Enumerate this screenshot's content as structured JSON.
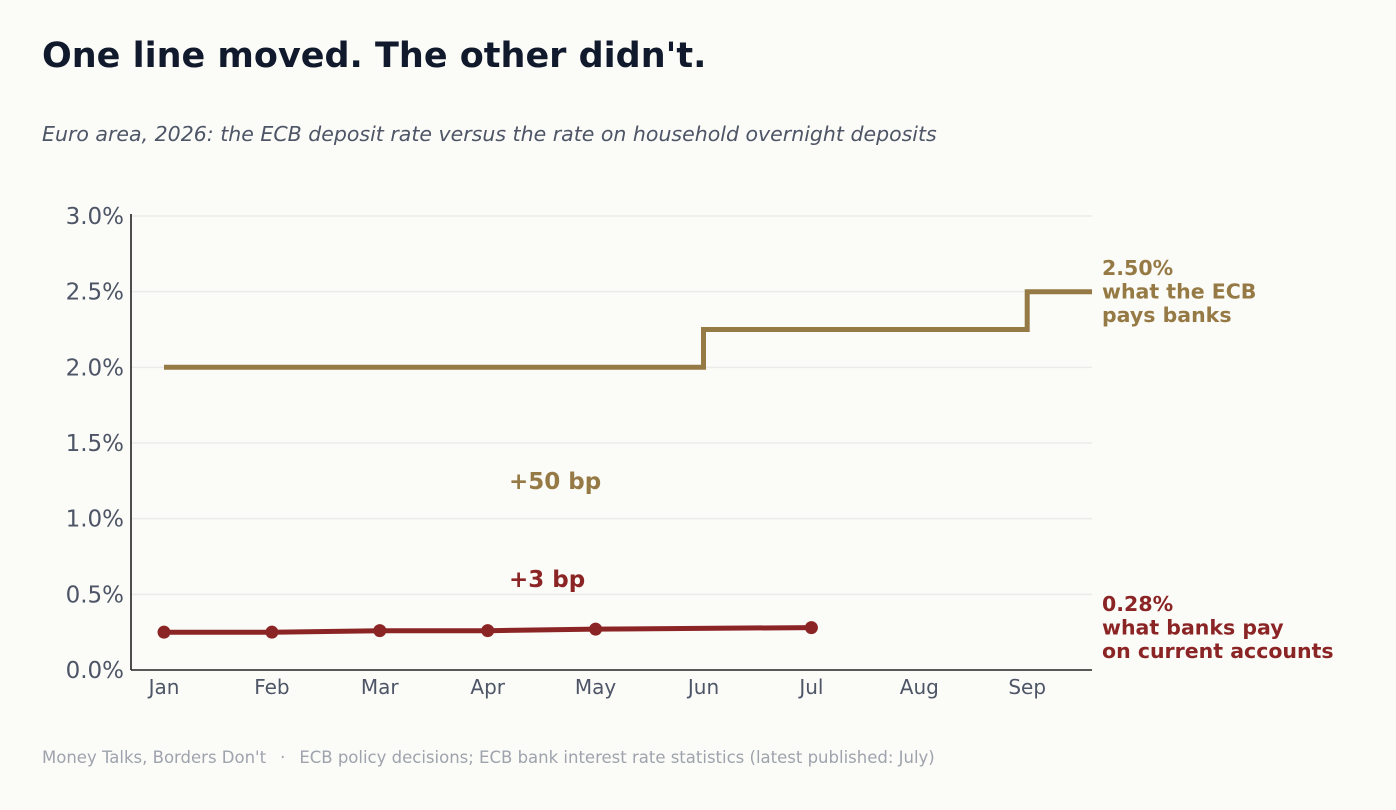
{
  "title": "One line moved. The other didn't.",
  "subtitle": "Euro area, 2026: the ECB deposit rate versus the rate on household overnight deposits",
  "footer": {
    "source_name": "Money Talks, Borders Don't",
    "separator": "·",
    "source_detail": "ECB policy decisions; ECB bank interest rate statistics (latest published: July)"
  },
  "colors": {
    "ecb": "#967a45",
    "household": "#8b2525",
    "axis": "#222222",
    "grid": "#ebebeb",
    "tick_text": "#4d5566"
  },
  "chart_data": {
    "type": "line",
    "x_categories": [
      "Jan",
      "Feb",
      "Mar",
      "Apr",
      "May",
      "Jun",
      "Jul",
      "Aug",
      "Sep"
    ],
    "y_ticks": [
      0.0,
      0.5,
      1.0,
      1.5,
      2.0,
      2.5,
      3.0
    ],
    "y_tick_labels": [
      "0.0%",
      "0.5%",
      "1.0%",
      "1.5%",
      "2.0%",
      "2.5%",
      "3.0%"
    ],
    "ylim": [
      0,
      3.0
    ],
    "grid": "horizontal",
    "series": [
      {
        "key": "ecb",
        "type": "step",
        "points": [
          {
            "x": "Jan",
            "y": 2.0
          },
          {
            "x": "Jun",
            "y": 2.0
          },
          {
            "x": "Jun",
            "y": 2.25
          },
          {
            "x": "Sep",
            "y": 2.25
          },
          {
            "x": "Sep",
            "y": 2.5
          },
          {
            "x": "end",
            "y": 2.5
          }
        ],
        "end_label": [
          "2.50%",
          "what the ECB",
          "pays banks"
        ],
        "change_annotation": "+50 bp"
      },
      {
        "key": "household",
        "type": "line",
        "markers": true,
        "points": [
          {
            "x": "Jan",
            "y": 0.25
          },
          {
            "x": "Feb",
            "y": 0.25
          },
          {
            "x": "Mar",
            "y": 0.26
          },
          {
            "x": "Apr",
            "y": 0.26
          },
          {
            "x": "May",
            "y": 0.27
          },
          {
            "x": "Jul",
            "y": 0.28
          }
        ],
        "end_label": [
          "0.28%",
          "what banks pay",
          "on current accounts"
        ],
        "change_annotation": "+3 bp"
      }
    ]
  }
}
